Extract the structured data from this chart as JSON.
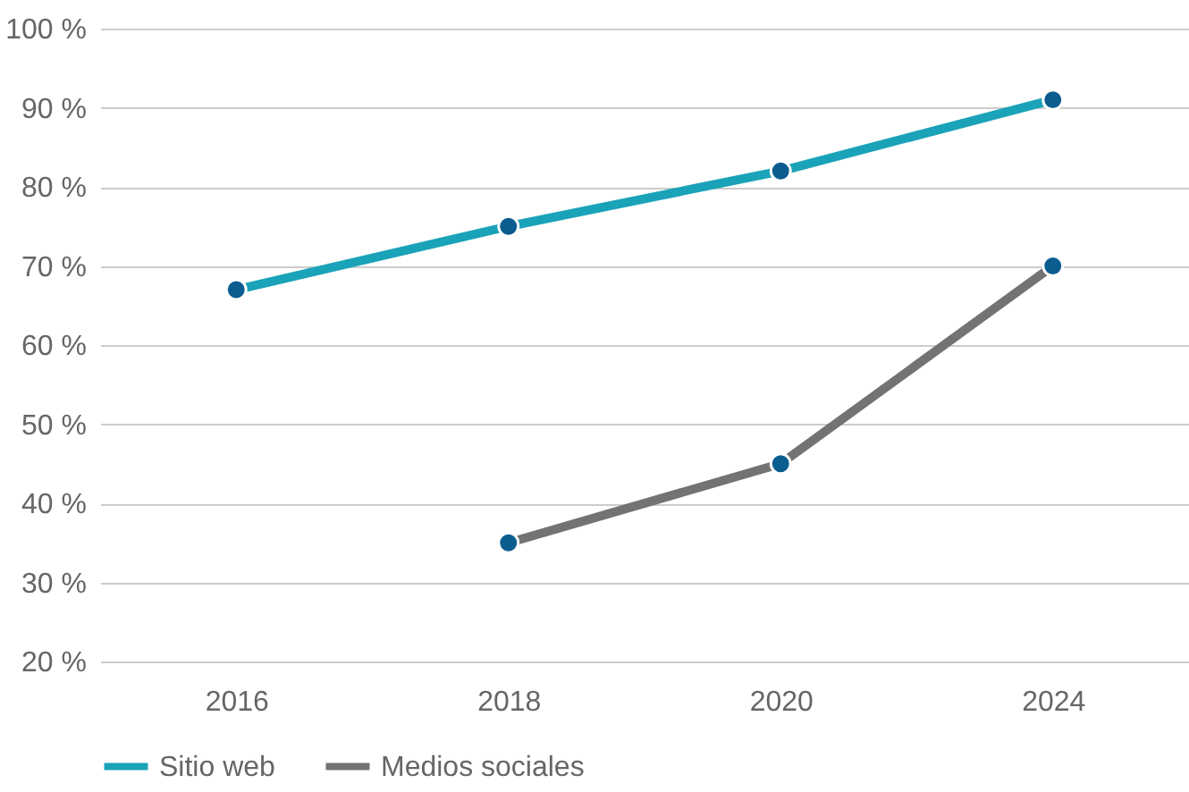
{
  "chart_data": {
    "type": "line",
    "categories": [
      "2016",
      "2018",
      "2020",
      "2024"
    ],
    "series": [
      {
        "name": "Sitio web",
        "color": "#1aa3b8",
        "values": [
          67,
          75,
          82,
          91
        ]
      },
      {
        "name": "Medios sociales",
        "color": "#737373",
        "values": [
          null,
          35,
          45,
          70
        ]
      }
    ],
    "ylim": [
      20,
      100
    ],
    "yticks": [
      {
        "value": 20,
        "label": "20 %"
      },
      {
        "value": 30,
        "label": "30 %"
      },
      {
        "value": 40,
        "label": "40 %"
      },
      {
        "value": 50,
        "label": "50 %"
      },
      {
        "value": 60,
        "label": "60 %"
      },
      {
        "value": 70,
        "label": "70 %"
      },
      {
        "value": 80,
        "label": "80 %"
      },
      {
        "value": 90,
        "label": "90 %"
      },
      {
        "value": 100,
        "label": "100 %"
      }
    ],
    "grid": "y",
    "legend": "bottom",
    "marker": "circle",
    "line_style": "solid"
  }
}
